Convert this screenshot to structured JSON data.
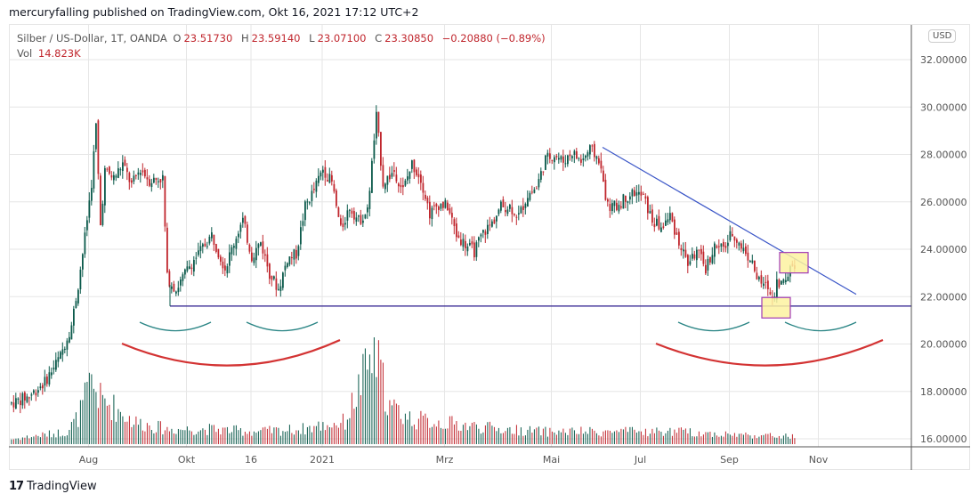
{
  "publish_line": "mercuryfalling published on TradingView.com, Okt 16, 2021 17:12 UTC+2",
  "legend": {
    "symbol": "Silber / US-Dollar, 1T, OANDA",
    "open_label": "O",
    "open": "23.51730",
    "high_label": "H",
    "high": "23.59140",
    "low_label": "L",
    "low": "23.07100",
    "close_label": "C",
    "close": "23.30850",
    "change": "−0.20880 (−0.89%)",
    "vol_label": "Vol",
    "vol": "14.823K"
  },
  "currency_badge": "USD",
  "footer_logo": "TradingView",
  "footer_logo_mark": "17",
  "colors": {
    "up": "#0b5a4b",
    "down": "#c0262d",
    "grid": "#e6e6e6",
    "support": "#2a1a8c",
    "trend": "#3a55c7",
    "arc_small": "#2a8585",
    "arc_big": "#d33333",
    "box_fill": "#fdf2a0",
    "box_stroke": "#a23ab5"
  },
  "chart_data": {
    "type": "candlestick",
    "title": "Silber / US-Dollar, 1T, OANDA",
    "xlabel": "",
    "ylabel": "USD",
    "ylim": [
      15.8,
      33.5
    ],
    "y_ticks": [
      "32.00000",
      "30.00000",
      "28.00000",
      "26.00000",
      "24.00000",
      "22.00000",
      "20.00000",
      "18.00000",
      "16.00000"
    ],
    "y_tick_values": [
      32,
      30,
      28,
      26,
      24,
      22,
      20,
      18,
      16
    ],
    "x_ticks": [
      "Aug",
      "Okt",
      "16",
      "2021",
      "Mrz",
      "Mai",
      "Jul",
      "Sep",
      "Nov"
    ],
    "x_tick_index": [
      35,
      79,
      108,
      140,
      195,
      243,
      283,
      323,
      363
    ],
    "bars_total": 400,
    "price_path": [
      [
        0,
        17.5
      ],
      [
        8,
        17.8
      ],
      [
        15,
        18.4
      ],
      [
        22,
        19.5
      ],
      [
        27,
        20.8
      ],
      [
        30,
        22.5
      ],
      [
        33,
        24.5
      ],
      [
        36,
        26.8
      ],
      [
        38,
        29.2
      ],
      [
        40,
        25.0
      ],
      [
        42,
        27.3
      ],
      [
        46,
        27.0
      ],
      [
        50,
        27.6
      ],
      [
        54,
        26.7
      ],
      [
        58,
        27.4
      ],
      [
        62,
        26.9
      ],
      [
        68,
        27.0
      ],
      [
        70,
        22.8
      ],
      [
        74,
        22.3
      ],
      [
        80,
        23.3
      ],
      [
        84,
        23.8
      ],
      [
        90,
        24.6
      ],
      [
        96,
        23.2
      ],
      [
        102,
        24.8
      ],
      [
        104,
        25.2
      ],
      [
        108,
        23.7
      ],
      [
        112,
        24.3
      ],
      [
        116,
        23.0
      ],
      [
        120,
        22.3
      ],
      [
        124,
        23.6
      ],
      [
        128,
        23.8
      ],
      [
        132,
        25.8
      ],
      [
        136,
        26.5
      ],
      [
        140,
        27.4
      ],
      [
        144,
        26.8
      ],
      [
        148,
        24.8
      ],
      [
        152,
        25.8
      ],
      [
        156,
        25.2
      ],
      [
        160,
        25.6
      ],
      [
        164,
        29.6
      ],
      [
        167,
        26.8
      ],
      [
        172,
        27.3
      ],
      [
        176,
        26.5
      ],
      [
        180,
        27.6
      ],
      [
        184,
        27.0
      ],
      [
        188,
        25.5
      ],
      [
        192,
        25.9
      ],
      [
        196,
        25.8
      ],
      [
        200,
        24.6
      ],
      [
        204,
        24.2
      ],
      [
        208,
        23.9
      ],
      [
        212,
        24.7
      ],
      [
        216,
        25.1
      ],
      [
        220,
        25.8
      ],
      [
        224,
        25.8
      ],
      [
        228,
        25.4
      ],
      [
        232,
        26.3
      ],
      [
        236,
        26.6
      ],
      [
        240,
        27.8
      ],
      [
        244,
        28.0
      ],
      [
        248,
        27.7
      ],
      [
        252,
        28.1
      ],
      [
        256,
        27.7
      ],
      [
        260,
        28.2
      ],
      [
        264,
        27.8
      ],
      [
        268,
        25.8
      ],
      [
        272,
        25.8
      ],
      [
        276,
        26.2
      ],
      [
        280,
        26.4
      ],
      [
        284,
        26.2
      ],
      [
        288,
        25.2
      ],
      [
        292,
        24.9
      ],
      [
        296,
        25.4
      ],
      [
        300,
        24.3
      ],
      [
        304,
        23.4
      ],
      [
        308,
        23.9
      ],
      [
        312,
        23.2
      ],
      [
        316,
        24.1
      ],
      [
        320,
        24.0
      ],
      [
        324,
        24.7
      ],
      [
        328,
        24.1
      ],
      [
        332,
        23.6
      ],
      [
        336,
        22.6
      ],
      [
        340,
        22.4
      ],
      [
        342,
        21.9
      ],
      [
        344,
        22.6
      ],
      [
        348,
        22.6
      ],
      [
        350,
        23.3
      ],
      [
        352,
        23.4
      ]
    ],
    "volume_path": [
      [
        0,
        0.04
      ],
      [
        25,
        0.1
      ],
      [
        30,
        0.22
      ],
      [
        36,
        0.5
      ],
      [
        40,
        0.36
      ],
      [
        46,
        0.3
      ],
      [
        55,
        0.18
      ],
      [
        70,
        0.12
      ],
      [
        90,
        0.12
      ],
      [
        110,
        0.1
      ],
      [
        130,
        0.12
      ],
      [
        150,
        0.18
      ],
      [
        163,
        0.75
      ],
      [
        170,
        0.3
      ],
      [
        180,
        0.2
      ],
      [
        190,
        0.18
      ],
      [
        200,
        0.16
      ],
      [
        220,
        0.12
      ],
      [
        240,
        0.1
      ],
      [
        260,
        0.1
      ],
      [
        300,
        0.1
      ],
      [
        320,
        0.08
      ],
      [
        352,
        0.06
      ]
    ],
    "annotations": {
      "support_level": 21.6,
      "trendline": {
        "from": [
          266,
          28.3
        ],
        "to": [
          380,
          22.1
        ]
      },
      "highlight_boxes": [
        {
          "center": [
            344,
            21.55
          ]
        },
        {
          "center": [
            352,
            23.45
          ]
        }
      ],
      "rounded_bottoms_small": [
        [
          58,
          90
        ],
        [
          106,
          138
        ],
        [
          300,
          332
        ],
        [
          348,
          380
        ]
      ],
      "rounded_bottoms_large": [
        [
          50,
          148
        ],
        [
          290,
          392
        ]
      ]
    }
  }
}
